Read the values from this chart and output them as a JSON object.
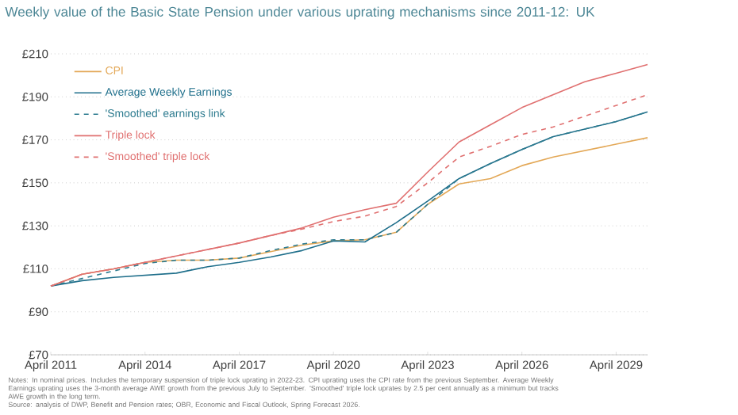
{
  "chart_data": {
    "type": "line",
    "title": "Weekly value of the Basic State Pension under various uprating mechanisms since 2011-12: UK",
    "x": [
      "2011-04",
      "2012-04",
      "2013-04",
      "2014-04",
      "2015-04",
      "2016-04",
      "2017-04",
      "2018-04",
      "2019-04",
      "2020-04",
      "2021-04",
      "2022-04",
      "2023-04",
      "2024-04",
      "2025-04",
      "2026-04",
      "2027-04",
      "2028-04",
      "2029-04",
      "2030-04"
    ],
    "series": [
      {
        "name": "CPI",
        "color": "#e3a857",
        "line_style": "solid",
        "values": [
          102,
          107.5,
          110,
          113,
          114,
          114,
          115,
          118,
          121,
          123,
          123.5,
          127,
          140,
          149.5,
          152,
          158,
          162,
          165,
          168,
          171
        ]
      },
      {
        "name": "Average Weekly Earnings",
        "color": "#1f6f8b",
        "line_style": "solid",
        "values": [
          102,
          104.5,
          106,
          107,
          108,
          111,
          113,
          115.5,
          118.5,
          123,
          122.5,
          131.5,
          141.5,
          152,
          159,
          165.5,
          171.5,
          175,
          178.5,
          183
        ]
      },
      {
        "name": "'Smoothed' earnings link",
        "color": "#2d7b8f",
        "line_style": "dashed",
        "values": [
          102,
          105.5,
          109,
          112.5,
          114,
          114,
          115,
          118.5,
          121.5,
          123.5,
          123.5,
          127,
          140,
          152,
          159,
          165.5,
          171.5,
          175,
          178.5,
          183
        ]
      },
      {
        "name": "Triple lock",
        "color": "#e07070",
        "line_style": "solid",
        "values": [
          102,
          107.5,
          110,
          113,
          116,
          119,
          122,
          125.5,
          129,
          134,
          137.5,
          140.5,
          155,
          169,
          177,
          185,
          191,
          197,
          201,
          205
        ]
      },
      {
        "name": "'Smoothed' triple lock",
        "color": "#e07070",
        "line_style": "dashed",
        "values": [
          102,
          107.5,
          110,
          113,
          116,
          119,
          122,
          125.5,
          128.5,
          132,
          134.5,
          139,
          150,
          162,
          167,
          172.5,
          176,
          181,
          186,
          191
        ]
      }
    ],
    "xlim": [
      "2011-04",
      "2030-04"
    ],
    "xticks": [
      {
        "value": "2011-04",
        "label": "April 2011"
      },
      {
        "value": "2014-04",
        "label": "April 2014"
      },
      {
        "value": "2017-04",
        "label": "April 2017"
      },
      {
        "value": "2020-04",
        "label": "April 2020"
      },
      {
        "value": "2023-04",
        "label": "April 2023"
      },
      {
        "value": "2026-04",
        "label": "April 2026"
      },
      {
        "value": "2029-04",
        "label": "April 2029"
      }
    ],
    "ylim": [
      70,
      210
    ],
    "yticks": [
      {
        "value": 70,
        "label": "£70"
      },
      {
        "value": 90,
        "label": "£90"
      },
      {
        "value": 110,
        "label": "£110"
      },
      {
        "value": 130,
        "label": "£130"
      },
      {
        "value": 150,
        "label": "£150"
      },
      {
        "value": 170,
        "label": "£170"
      },
      {
        "value": 190,
        "label": "£190"
      },
      {
        "value": 210,
        "label": "£210"
      }
    ],
    "grid": "y",
    "legend": "top left",
    "annotations": [
      "Notes: In nominal prices. Includes the temporary suspension of triple lock uprating in 2022-23. CPI uprating uses the CPI rate from the previous September. Average Weekly Earnings uprating uses the 3-month average AWE growth from the previous July to September. 'Smoothed' triple lock uprates by 2.5 per cent annually as a minimum but tracks AWE growth in the long term.",
      "Source: analysis of DWP, Benefit and Pension rates; OBR, Economic and Fiscal Outlook, Spring Forecast 2026."
    ]
  }
}
